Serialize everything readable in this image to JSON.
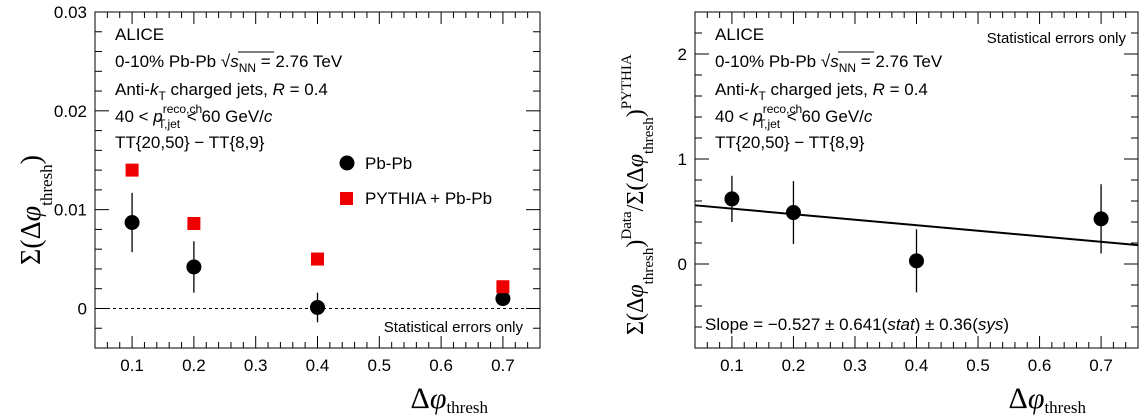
{
  "chart_data": [
    {
      "type": "scatter",
      "ylabel": "Σ(Δφ_thresh)",
      "xlabel": "Δφ_thresh",
      "xlim": [
        0.04,
        0.76
      ],
      "ylim": [
        -0.004,
        0.03
      ],
      "xticks": [
        0.1,
        0.2,
        0.3,
        0.4,
        0.5,
        0.6,
        0.7
      ],
      "xtick_labels": [
        "0.1",
        "0.2",
        "0.3",
        "0.4",
        "0.5",
        "0.6",
        "0.7"
      ],
      "yticks": [
        0,
        0.01,
        0.02,
        0.03
      ],
      "ytick_labels": [
        "0",
        "0.01",
        "0.02",
        "0.03"
      ],
      "annotations": {
        "experiment": "ALICE",
        "line1": "0-10% Pb-Pb √sNN = 2.76 TeV",
        "line2": "Anti-kT charged jets, R = 0.4",
        "line3": "40 < p_T,jet^reco,ch < 60 GeV/c",
        "line4": "TT{20,50} − TT{8,9}",
        "note": "Statistical errors only"
      },
      "series": [
        {
          "name": "Pb-Pb",
          "color": "#000000",
          "marker": "circle",
          "x": [
            0.1,
            0.2,
            0.4,
            0.7
          ],
          "y": [
            0.0087,
            0.0042,
            0.0001,
            0.001
          ],
          "err": [
            0.003,
            0.0026,
            0.0015,
            0.0006
          ]
        },
        {
          "name": "PYTHIA + Pb-Pb",
          "color": "#ee0000",
          "marker": "square",
          "x": [
            0.1,
            0.2,
            0.4,
            0.7
          ],
          "y": [
            0.014,
            0.0086,
            0.005,
            0.0022
          ],
          "err": [
            0.0006,
            0.0003,
            0.0002,
            0.0001
          ]
        }
      ],
      "zero_line": "dashed"
    },
    {
      "type": "scatter",
      "ylabel": "Σ(Δφ_thresh)^Data / Σ(Δφ_thresh)^PYTHIA",
      "xlabel": "Δφ_thresh",
      "xlim": [
        0.04,
        0.76
      ],
      "ylim": [
        -0.8,
        2.4
      ],
      "xticks": [
        0.1,
        0.2,
        0.3,
        0.4,
        0.5,
        0.6,
        0.7
      ],
      "xtick_labels": [
        "0.1",
        "0.2",
        "0.3",
        "0.4",
        "0.5",
        "0.6",
        "0.7"
      ],
      "yticks": [
        0,
        1,
        2
      ],
      "ytick_labels": [
        "0",
        "1",
        "2"
      ],
      "annotations": {
        "experiment": "ALICE",
        "line1": "0-10% Pb-Pb √sNN = 2.76 TeV",
        "line2": "Anti-kT charged jets, R = 0.4",
        "line3": "40 < p_T,jet^reco,ch < 60 GeV/c",
        "line4": "TT{20,50} − TT{8,9}",
        "note": "Statistical errors only",
        "slope_text": "Slope = −0.527 ± 0.641(stat) ± 0.36(sys)"
      },
      "series": [
        {
          "name": "Data / PYTHIA",
          "color": "#000000",
          "marker": "circle",
          "x": [
            0.1,
            0.2,
            0.4,
            0.7
          ],
          "y": [
            0.62,
            0.49,
            0.03,
            0.43
          ],
          "err": [
            0.22,
            0.3,
            0.3,
            0.33
          ]
        }
      ],
      "fit_line": {
        "slope": -0.527,
        "intercept": 0.58
      }
    }
  ]
}
